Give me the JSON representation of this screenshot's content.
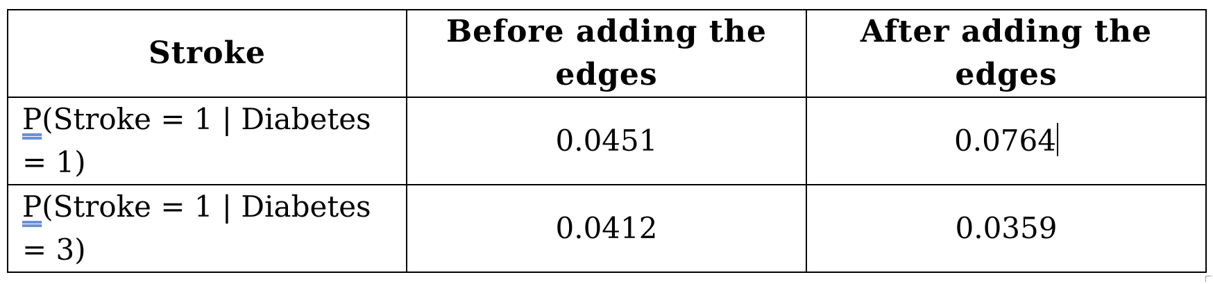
{
  "table": {
    "headers": [
      "Stroke",
      "Before adding the edges",
      "After adding the edges"
    ],
    "rows": [
      {
        "p": "P",
        "label_rest": "(Stroke = 1 | Diabetes = 1)",
        "before": "0.0451",
        "after": "0.0764"
      },
      {
        "p": "P",
        "label_rest": "(Stroke = 1 | Diabetes = 3)",
        "before": "0.0412",
        "after": "0.0359"
      }
    ]
  }
}
